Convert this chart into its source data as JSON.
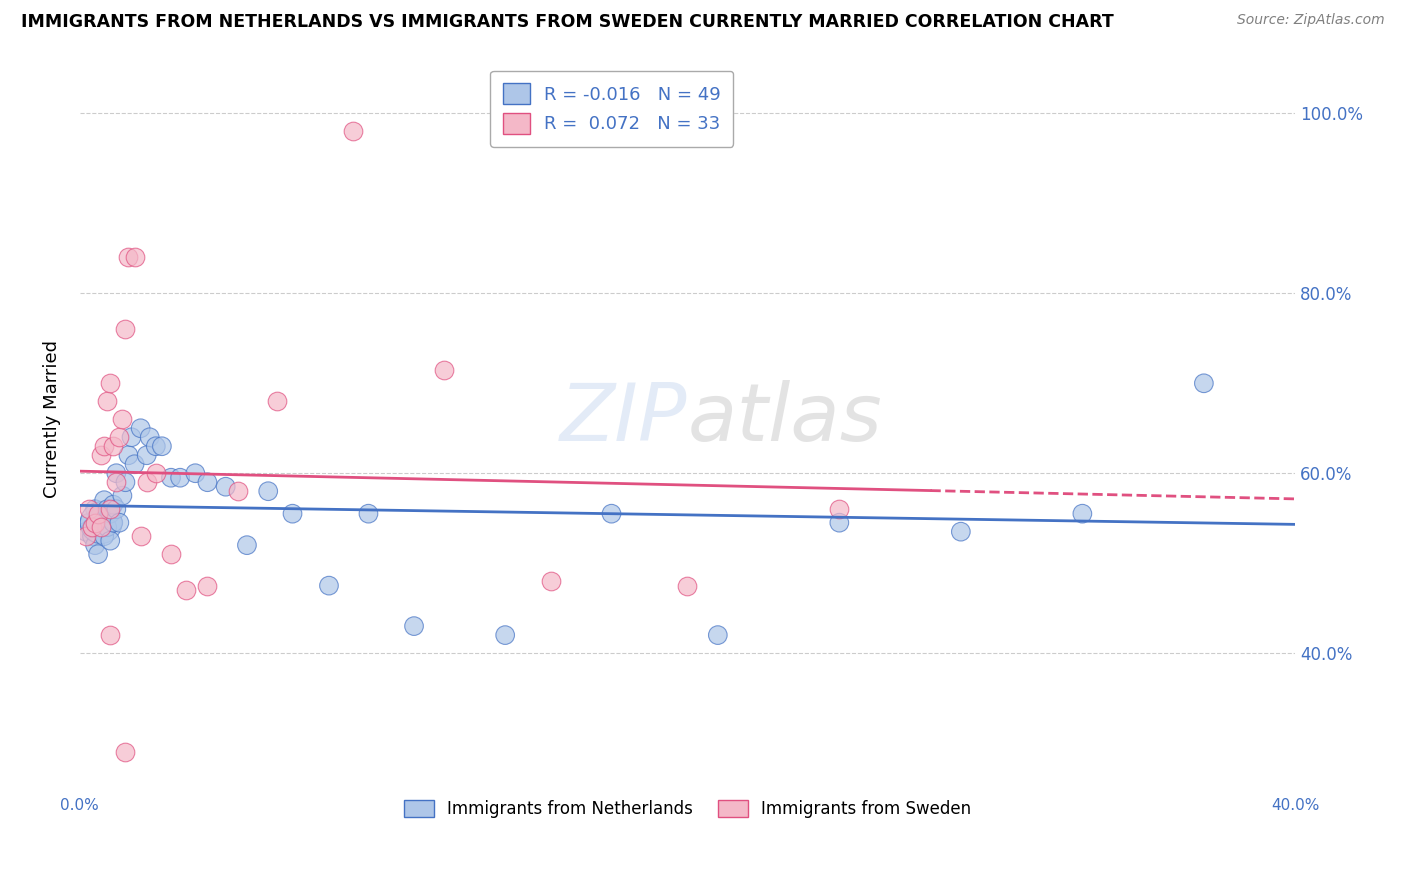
{
  "title": "IMMIGRANTS FROM NETHERLANDS VS IMMIGRANTS FROM SWEDEN CURRENTLY MARRIED CORRELATION CHART",
  "source": "Source: ZipAtlas.com",
  "ylabel": "Currently Married",
  "legend_netherlands": "Immigrants from Netherlands",
  "legend_sweden": "Immigrants from Sweden",
  "R_netherlands": -0.016,
  "N_netherlands": 49,
  "R_sweden": 0.072,
  "N_sweden": 33,
  "color_netherlands": "#aec6e8",
  "color_sweden": "#f4b8c8",
  "line_color_netherlands": "#4472c4",
  "line_color_sweden": "#e05080",
  "line_color_sweden_dashed": "#e05080",
  "background_color": "#ffffff",
  "grid_color": "#cccccc",
  "xlim": [
    0.0,
    0.4
  ],
  "ylim": [
    0.27,
    1.05
  ],
  "yticks": [
    0.4,
    0.6,
    0.8,
    1.0
  ],
  "ytick_labels": [
    "40.0%",
    "60.0%",
    "80.0%",
    "100.0%"
  ],
  "netherlands_x": [
    0.002,
    0.003,
    0.004,
    0.004,
    0.005,
    0.005,
    0.006,
    0.006,
    0.007,
    0.007,
    0.008,
    0.008,
    0.009,
    0.009,
    0.01,
    0.01,
    0.011,
    0.011,
    0.012,
    0.012,
    0.013,
    0.014,
    0.015,
    0.016,
    0.017,
    0.018,
    0.02,
    0.022,
    0.023,
    0.025,
    0.027,
    0.03,
    0.033,
    0.038,
    0.042,
    0.048,
    0.055,
    0.062,
    0.07,
    0.082,
    0.095,
    0.11,
    0.14,
    0.175,
    0.21,
    0.25,
    0.29,
    0.33,
    0.37
  ],
  "netherlands_y": [
    0.535,
    0.545,
    0.53,
    0.54,
    0.52,
    0.56,
    0.51,
    0.55,
    0.555,
    0.545,
    0.53,
    0.57,
    0.54,
    0.56,
    0.525,
    0.555,
    0.545,
    0.565,
    0.6,
    0.56,
    0.545,
    0.575,
    0.59,
    0.62,
    0.64,
    0.61,
    0.65,
    0.62,
    0.64,
    0.63,
    0.63,
    0.595,
    0.595,
    0.6,
    0.59,
    0.585,
    0.52,
    0.58,
    0.555,
    0.475,
    0.555,
    0.43,
    0.42,
    0.555,
    0.42,
    0.545,
    0.535,
    0.555,
    0.7
  ],
  "netherlands_size": [
    2,
    2,
    2,
    2,
    2,
    2,
    2,
    2,
    2,
    2,
    2,
    2,
    2,
    2,
    2,
    2,
    2,
    2,
    2,
    2,
    2,
    2,
    2,
    2,
    2,
    2,
    2,
    2,
    2,
    2,
    2,
    2,
    2,
    2,
    2,
    2,
    2,
    2,
    2,
    2,
    2,
    2,
    2,
    2,
    2,
    2,
    2,
    2,
    2
  ],
  "netherlands_size_mult": [
    1,
    1,
    1,
    1,
    1,
    1,
    1,
    1,
    1,
    1,
    1,
    1,
    1,
    1,
    1,
    1,
    1,
    1,
    1,
    1,
    1,
    1,
    1,
    1,
    1,
    1,
    1,
    1,
    1,
    1,
    1,
    1,
    1,
    1,
    1,
    1,
    1,
    1,
    1,
    1,
    1,
    1,
    1,
    1,
    1,
    1,
    1,
    1,
    1
  ],
  "netherlands_large": [
    9
  ],
  "sweden_x": [
    0.002,
    0.003,
    0.004,
    0.005,
    0.006,
    0.007,
    0.007,
    0.008,
    0.009,
    0.01,
    0.01,
    0.011,
    0.012,
    0.013,
    0.014,
    0.015,
    0.016,
    0.018,
    0.02,
    0.022,
    0.025,
    0.03,
    0.035,
    0.042,
    0.052,
    0.065,
    0.09,
    0.12,
    0.155,
    0.2,
    0.25,
    0.015,
    0.01
  ],
  "sweden_y": [
    0.53,
    0.56,
    0.54,
    0.545,
    0.555,
    0.54,
    0.62,
    0.63,
    0.68,
    0.7,
    0.56,
    0.63,
    0.59,
    0.64,
    0.66,
    0.76,
    0.84,
    0.84,
    0.53,
    0.59,
    0.6,
    0.51,
    0.47,
    0.475,
    0.58,
    0.68,
    0.98,
    0.715,
    0.48,
    0.475,
    0.56,
    0.29,
    0.42
  ],
  "sweden_size": [
    2,
    2,
    2,
    2,
    2,
    2,
    2,
    2,
    2,
    2,
    2,
    2,
    2,
    2,
    2,
    2,
    2,
    2,
    2,
    2,
    2,
    2,
    2,
    2,
    2,
    2,
    2,
    2,
    2,
    2,
    2,
    2,
    2
  ]
}
